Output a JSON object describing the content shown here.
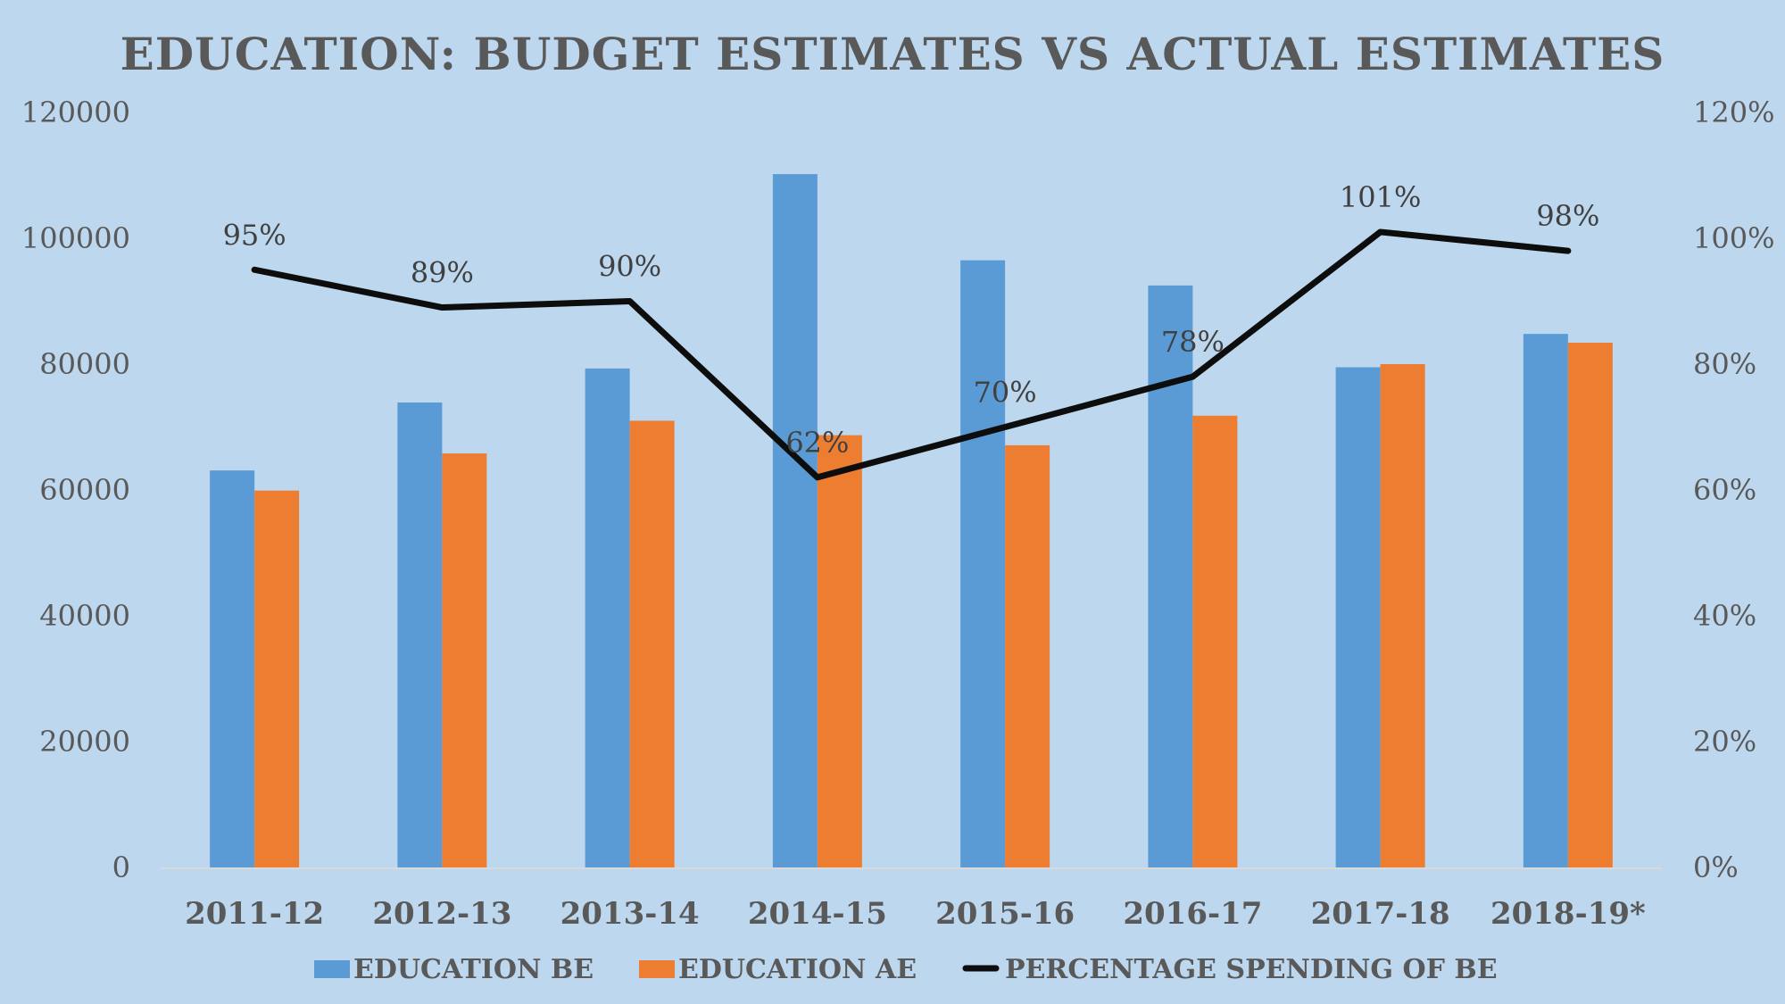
{
  "chart_data": {
    "type": "bar",
    "title": "EDUCATION: BUDGET ESTIMATES VS ACTUAL ESTIMATES",
    "xlabel": "",
    "ylabel": "",
    "y2label": "",
    "categories": [
      "2011-12",
      "2012-13",
      "2013-14",
      "2014-15",
      "2015-16",
      "2016-17",
      "2017-18",
      "2018-19*"
    ],
    "series": [
      {
        "name": "EDUCATION BE",
        "type": "bar",
        "axis": "left",
        "color": "#5b9bd5",
        "values": [
          63100,
          73900,
          79300,
          110200,
          96500,
          92500,
          79500,
          84800
        ]
      },
      {
        "name": "EDUCATION AE",
        "type": "bar",
        "axis": "left",
        "color": "#ed7d31",
        "values": [
          59900,
          65800,
          71000,
          68700,
          67100,
          71800,
          80000,
          83400
        ]
      },
      {
        "name": "PERCENTAGE SPENDING OF BE",
        "type": "line",
        "axis": "right",
        "color": "#0d0d0d",
        "values": [
          95,
          89,
          90,
          62,
          70,
          78,
          101,
          98
        ],
        "data_labels": [
          "95%",
          "89%",
          "90%",
          "62%",
          "70%",
          "78%",
          "101%",
          "98%"
        ]
      }
    ],
    "ylim": [
      0,
      120000
    ],
    "yticks": [
      "0",
      "20000",
      "40000",
      "60000",
      "80000",
      "100000",
      "120000"
    ],
    "y2lim": [
      0,
      120
    ],
    "y2ticks": [
      "0%",
      "20%",
      "40%",
      "60%",
      "80%",
      "100%",
      "120%"
    ],
    "grid": false,
    "legend": "bottom",
    "background": "#bdd7ee",
    "axis_line_color": "#d9d9d9"
  }
}
